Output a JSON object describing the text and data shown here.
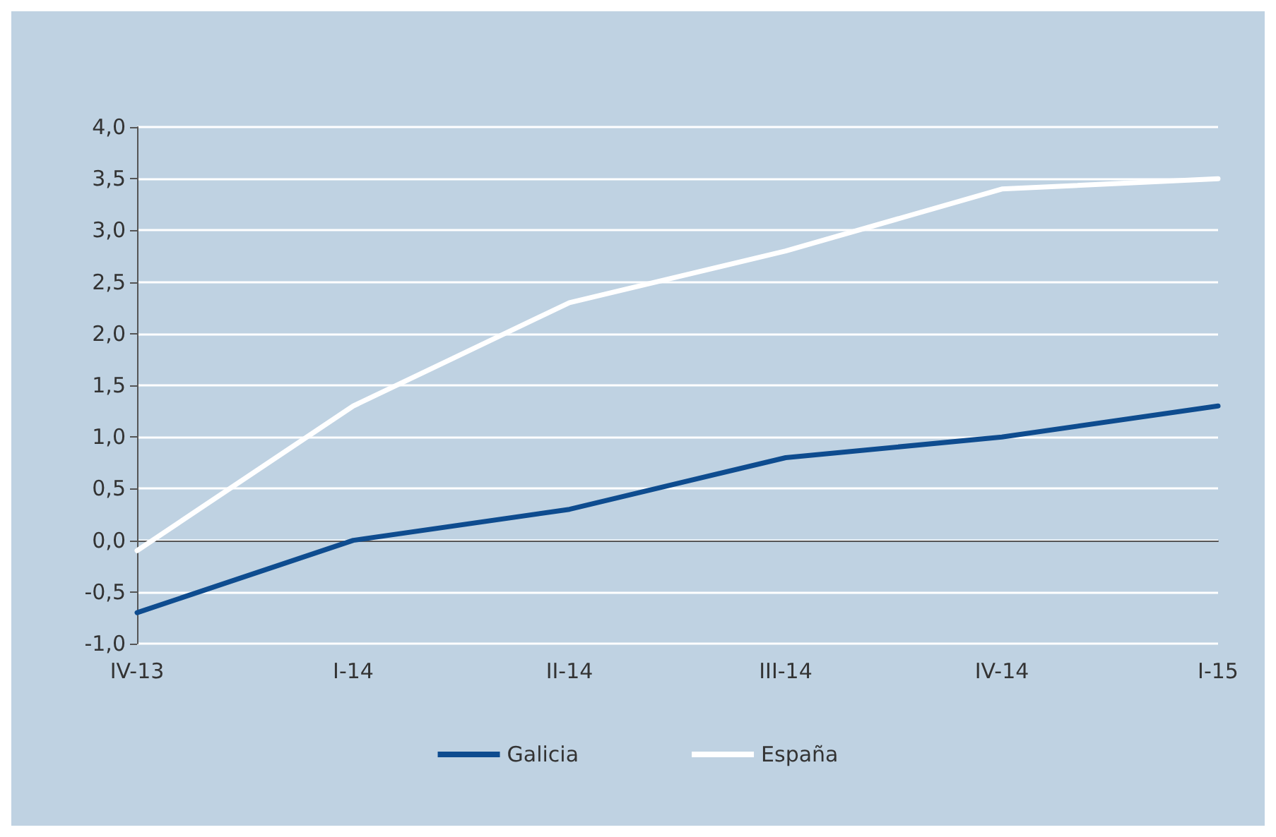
{
  "chart_data": {
    "type": "line",
    "categories": [
      "IV-13",
      "I-14",
      "II-14",
      "III-14",
      "IV-14",
      "I-15"
    ],
    "series": [
      {
        "name": "Galicia",
        "color": "#0e4c8f",
        "values": [
          -0.7,
          0.0,
          0.3,
          0.8,
          1.0,
          1.3
        ]
      },
      {
        "name": "España",
        "color": "#ffffff",
        "values": [
          -0.1,
          1.3,
          2.3,
          2.8,
          3.4,
          3.5
        ]
      }
    ],
    "ylim": [
      -1.0,
      4.0
    ],
    "yticks": [
      {
        "value": -1.0,
        "label": "-1,0"
      },
      {
        "value": -0.5,
        "label": "-0,5"
      },
      {
        "value": 0.0,
        "label": "0,0"
      },
      {
        "value": 0.5,
        "label": "0,5"
      },
      {
        "value": 1.0,
        "label": "1,0"
      },
      {
        "value": 1.5,
        "label": "1,5"
      },
      {
        "value": 2.0,
        "label": "2,0"
      },
      {
        "value": 2.5,
        "label": "2,5"
      },
      {
        "value": 3.0,
        "label": "3,0"
      },
      {
        "value": 3.5,
        "label": "3,5"
      },
      {
        "value": 4.0,
        "label": "4,0"
      }
    ],
    "grid": "y",
    "legend": "bottom",
    "marker": "none",
    "line_style": "solid"
  }
}
